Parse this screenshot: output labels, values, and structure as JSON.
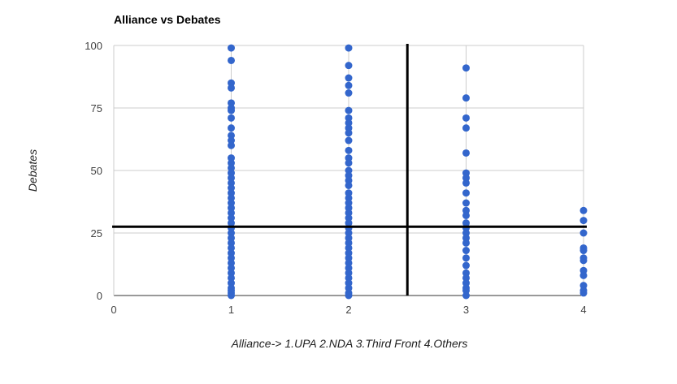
{
  "chart_data": {
    "type": "scatter",
    "title": "Alliance vs Debates",
    "xlabel": "Alliance-> 1.UPA 2.NDA 3.Third Front 4.Others",
    "ylabel": "Debates",
    "xlim": [
      0,
      4
    ],
    "ylim": [
      0,
      100
    ],
    "x_ticks": [
      "0",
      "1",
      "2",
      "3",
      "4"
    ],
    "y_ticks": [
      "0",
      "25",
      "50",
      "75",
      "100"
    ],
    "grid": true,
    "legend": "none",
    "marker_color": "#3366cc",
    "reference_lines": {
      "vertical_x": 2.5,
      "horizontal_y": 27.5,
      "color": "#000000"
    },
    "points": [
      {
        "x": 1,
        "y": 99
      },
      {
        "x": 1,
        "y": 94
      },
      {
        "x": 1,
        "y": 85
      },
      {
        "x": 1,
        "y": 83
      },
      {
        "x": 1,
        "y": 77
      },
      {
        "x": 1,
        "y": 75
      },
      {
        "x": 1,
        "y": 74
      },
      {
        "x": 1,
        "y": 71
      },
      {
        "x": 1,
        "y": 67
      },
      {
        "x": 1,
        "y": 64
      },
      {
        "x": 1,
        "y": 62
      },
      {
        "x": 1,
        "y": 60
      },
      {
        "x": 1,
        "y": 55
      },
      {
        "x": 1,
        "y": 53
      },
      {
        "x": 1,
        "y": 51
      },
      {
        "x": 1,
        "y": 49
      },
      {
        "x": 1,
        "y": 47
      },
      {
        "x": 1,
        "y": 45
      },
      {
        "x": 1,
        "y": 43
      },
      {
        "x": 1,
        "y": 41
      },
      {
        "x": 1,
        "y": 39
      },
      {
        "x": 1,
        "y": 37
      },
      {
        "x": 1,
        "y": 35
      },
      {
        "x": 1,
        "y": 33
      },
      {
        "x": 1,
        "y": 31
      },
      {
        "x": 1,
        "y": 29
      },
      {
        "x": 1,
        "y": 27
      },
      {
        "x": 1,
        "y": 25
      },
      {
        "x": 1,
        "y": 23
      },
      {
        "x": 1,
        "y": 21
      },
      {
        "x": 1,
        "y": 19
      },
      {
        "x": 1,
        "y": 17
      },
      {
        "x": 1,
        "y": 15
      },
      {
        "x": 1,
        "y": 13
      },
      {
        "x": 1,
        "y": 11
      },
      {
        "x": 1,
        "y": 9
      },
      {
        "x": 1,
        "y": 7
      },
      {
        "x": 1,
        "y": 5
      },
      {
        "x": 1,
        "y": 3
      },
      {
        "x": 1,
        "y": 2
      },
      {
        "x": 1,
        "y": 1
      },
      {
        "x": 1,
        "y": 0
      },
      {
        "x": 2,
        "y": 99
      },
      {
        "x": 2,
        "y": 92
      },
      {
        "x": 2,
        "y": 87
      },
      {
        "x": 2,
        "y": 84
      },
      {
        "x": 2,
        "y": 81
      },
      {
        "x": 2,
        "y": 74
      },
      {
        "x": 2,
        "y": 71
      },
      {
        "x": 2,
        "y": 69
      },
      {
        "x": 2,
        "y": 67
      },
      {
        "x": 2,
        "y": 65
      },
      {
        "x": 2,
        "y": 62
      },
      {
        "x": 2,
        "y": 58
      },
      {
        "x": 2,
        "y": 55
      },
      {
        "x": 2,
        "y": 53
      },
      {
        "x": 2,
        "y": 50
      },
      {
        "x": 2,
        "y": 48
      },
      {
        "x": 2,
        "y": 46
      },
      {
        "x": 2,
        "y": 44
      },
      {
        "x": 2,
        "y": 41
      },
      {
        "x": 2,
        "y": 39
      },
      {
        "x": 2,
        "y": 37
      },
      {
        "x": 2,
        "y": 35
      },
      {
        "x": 2,
        "y": 33
      },
      {
        "x": 2,
        "y": 31
      },
      {
        "x": 2,
        "y": 29
      },
      {
        "x": 2,
        "y": 27
      },
      {
        "x": 2,
        "y": 25
      },
      {
        "x": 2,
        "y": 23
      },
      {
        "x": 2,
        "y": 21
      },
      {
        "x": 2,
        "y": 19
      },
      {
        "x": 2,
        "y": 17
      },
      {
        "x": 2,
        "y": 15
      },
      {
        "x": 2,
        "y": 13
      },
      {
        "x": 2,
        "y": 11
      },
      {
        "x": 2,
        "y": 9
      },
      {
        "x": 2,
        "y": 7
      },
      {
        "x": 2,
        "y": 5
      },
      {
        "x": 2,
        "y": 3
      },
      {
        "x": 2,
        "y": 1
      },
      {
        "x": 2,
        "y": 0
      },
      {
        "x": 3,
        "y": 91
      },
      {
        "x": 3,
        "y": 79
      },
      {
        "x": 3,
        "y": 71
      },
      {
        "x": 3,
        "y": 67
      },
      {
        "x": 3,
        "y": 57
      },
      {
        "x": 3,
        "y": 49
      },
      {
        "x": 3,
        "y": 47
      },
      {
        "x": 3,
        "y": 45
      },
      {
        "x": 3,
        "y": 41
      },
      {
        "x": 3,
        "y": 37
      },
      {
        "x": 3,
        "y": 34
      },
      {
        "x": 3,
        "y": 32
      },
      {
        "x": 3,
        "y": 29
      },
      {
        "x": 3,
        "y": 27
      },
      {
        "x": 3,
        "y": 25
      },
      {
        "x": 3,
        "y": 23
      },
      {
        "x": 3,
        "y": 21
      },
      {
        "x": 3,
        "y": 18
      },
      {
        "x": 3,
        "y": 15
      },
      {
        "x": 3,
        "y": 12
      },
      {
        "x": 3,
        "y": 9
      },
      {
        "x": 3,
        "y": 7
      },
      {
        "x": 3,
        "y": 5
      },
      {
        "x": 3,
        "y": 3
      },
      {
        "x": 3,
        "y": 2
      },
      {
        "x": 3,
        "y": 0
      },
      {
        "x": 4,
        "y": 34
      },
      {
        "x": 4,
        "y": 30
      },
      {
        "x": 4,
        "y": 25
      },
      {
        "x": 4,
        "y": 19
      },
      {
        "x": 4,
        "y": 18
      },
      {
        "x": 4,
        "y": 15
      },
      {
        "x": 4,
        "y": 14
      },
      {
        "x": 4,
        "y": 10
      },
      {
        "x": 4,
        "y": 8
      },
      {
        "x": 4,
        "y": 4
      },
      {
        "x": 4,
        "y": 2
      },
      {
        "x": 4,
        "y": 1
      }
    ]
  }
}
